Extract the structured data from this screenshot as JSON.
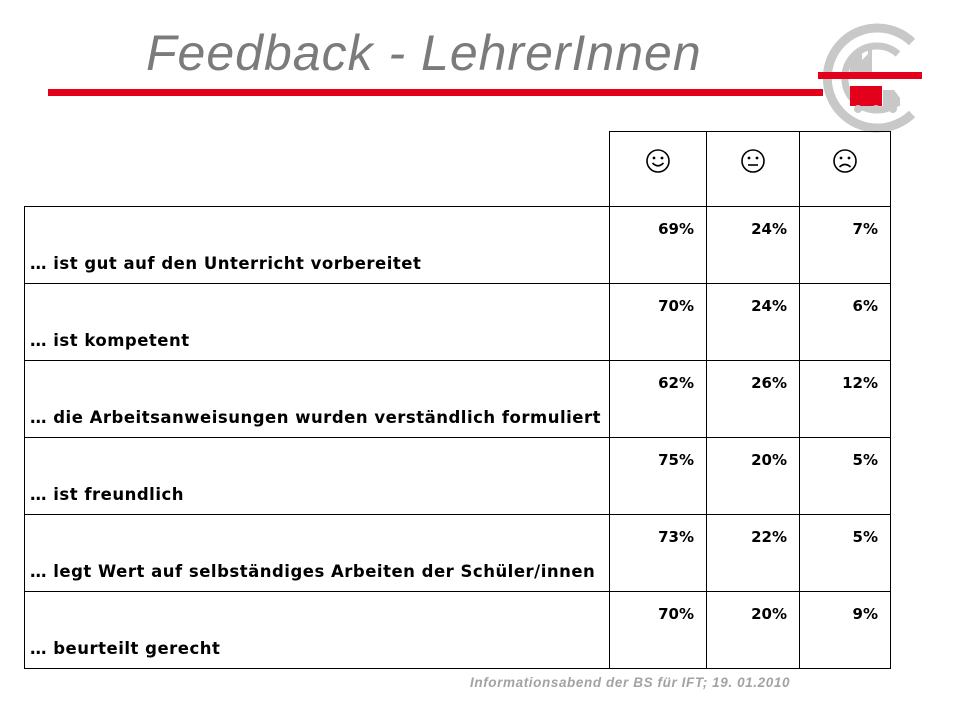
{
  "slide": {
    "title": "Feedback - LehrerInnen",
    "footer": "Informationsabend  der BS für IFT; 19. 01.2010"
  },
  "table": {
    "columns": [
      {
        "icon": "smiley-happy-icon"
      },
      {
        "icon": "smiley-neutral-icon"
      },
      {
        "icon": "smiley-sad-icon"
      }
    ],
    "rows": [
      {
        "label": "…  ist gut auf den Unterricht vorbereitet",
        "values": [
          "69%",
          "24%",
          "7%"
        ]
      },
      {
        "label": "… ist kompetent",
        "values": [
          "70%",
          "24%",
          "6%"
        ]
      },
      {
        "label": "… die Arbeitsanweisungen wurden verständlich formuliert",
        "values": [
          "62%",
          "26%",
          "12%"
        ]
      },
      {
        "label": "… ist freundlich",
        "values": [
          "75%",
          "20%",
          "5%"
        ]
      },
      {
        "label": "… legt Wert auf selbständiges Arbeiten der Schüler/innen",
        "values": [
          "73%",
          "22%",
          "5%"
        ]
      },
      {
        "label": "… beurteilt gerecht",
        "values": [
          "70%",
          "20%",
          "9%"
        ]
      }
    ]
  },
  "colors": {
    "accent_red": "#e3001b",
    "title_gray": "#7b7b7b",
    "footer_gray": "#a3a3a3",
    "logo_gray": "#c8c8c8"
  }
}
